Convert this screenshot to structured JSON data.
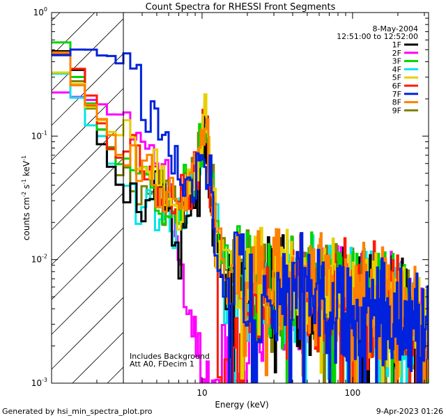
{
  "chart_data": {
    "type": "line",
    "title": "Count Spectra for RHESSI Front Segments",
    "xlabel": "Energy (keV)",
    "ylabel_main": "counts cm",
    "ylabel_exp1": "-2",
    "ylabel_mid": " s",
    "ylabel_exp2": "-1",
    "ylabel_end": " keV",
    "ylabel_exp3": "-1",
    "xscale": "log",
    "yscale": "log",
    "xlim": [
      1,
      320
    ],
    "ylim": [
      0.001,
      1.0
    ],
    "x_ticks": [
      {
        "value": 10,
        "label": "10"
      },
      {
        "value": 100,
        "label": "100"
      }
    ],
    "y_ticks": [
      {
        "value": 0.001,
        "base": "10",
        "exp": "-3"
      },
      {
        "value": 0.01,
        "base": "10",
        "exp": "-2"
      },
      {
        "value": 0.1,
        "base": "10",
        "exp": "-1"
      },
      {
        "value": 1.0,
        "base": "10",
        "exp": "0"
      }
    ],
    "legend_date": "8-May-2004",
    "legend_time": "12:51:00 to 12:52:00",
    "legend_position": "top-right",
    "shaded_region_max_energy": 3.0,
    "annotation_line1": "Includes Background",
    "annotation_line2": "Att A0, FDecim 1",
    "footer_left": "Generated by hsi_min_spectra_plot.pro",
    "footer_right": "9-Apr-2023 01:26",
    "series": [
      {
        "name": "1F",
        "color": "#000000",
        "seed": 11,
        "points": [
          [
            1,
            0.6
          ],
          [
            1.33,
            0.4
          ],
          [
            1.66,
            0.3
          ],
          [
            2.0,
            0.1
          ],
          [
            2.5,
            0.055
          ],
          [
            3.0,
            0.034
          ],
          [
            4.0,
            0.037
          ],
          [
            5.0,
            0.04
          ],
          [
            6.0,
            0.02
          ],
          [
            7.0,
            0.011
          ],
          [
            8.0,
            0.022
          ],
          [
            9.5,
            0.045
          ],
          [
            10.5,
            0.1
          ],
          [
            11.5,
            0.035
          ],
          [
            13,
            0.01
          ],
          [
            16,
            0.0075
          ],
          [
            20,
            0.0055
          ],
          [
            30,
            0.0055
          ],
          [
            50,
            0.0052
          ],
          [
            80,
            0.0045
          ],
          [
            150,
            0.0042
          ],
          [
            250,
            0.003
          ],
          [
            315,
            0.002
          ]
        ]
      },
      {
        "name": "2F",
        "color": "#ff00ff",
        "seed": 12,
        "points": [
          [
            1,
            0.24
          ],
          [
            1.33,
            0.22
          ],
          [
            1.66,
            0.2
          ],
          [
            2.0,
            0.19
          ],
          [
            2.5,
            0.16
          ],
          [
            3.0,
            0.14
          ],
          [
            4.0,
            0.095
          ],
          [
            5.0,
            0.065
          ],
          [
            6.0,
            0.038
          ],
          [
            7.0,
            0.012
          ],
          [
            7.8,
            0.0055
          ],
          [
            9.0,
            0.002
          ],
          [
            10.0,
            0.0012
          ],
          [
            11,
            0.0009
          ],
          [
            14,
            0.0016
          ],
          [
            17,
            0.001
          ],
          [
            22,
            0.0032
          ],
          [
            30,
            0.0045
          ],
          [
            50,
            0.0047
          ],
          [
            80,
            0.0045
          ],
          [
            150,
            0.004
          ],
          [
            250,
            0.003
          ],
          [
            315,
            0.0022
          ]
        ]
      },
      {
        "name": "3F",
        "color": "#00d400",
        "seed": 13,
        "points": [
          [
            1,
            0.65
          ],
          [
            1.33,
            0.45
          ],
          [
            1.66,
            0.22
          ],
          [
            2.0,
            0.14
          ],
          [
            2.5,
            0.075
          ],
          [
            3.0,
            0.055
          ],
          [
            4.0,
            0.05
          ],
          [
            5.0,
            0.035
          ],
          [
            6.0,
            0.025
          ],
          [
            7.0,
            0.025
          ],
          [
            8.0,
            0.035
          ],
          [
            9.5,
            0.06
          ],
          [
            10.5,
            0.13
          ],
          [
            11.5,
            0.045
          ],
          [
            13,
            0.012
          ],
          [
            16,
            0.008
          ],
          [
            20,
            0.0062
          ],
          [
            30,
            0.0058
          ],
          [
            50,
            0.0057
          ],
          [
            80,
            0.0052
          ],
          [
            150,
            0.0045
          ],
          [
            250,
            0.0032
          ],
          [
            315,
            0.002
          ]
        ]
      },
      {
        "name": "4F",
        "color": "#00e5e5",
        "seed": 14,
        "points": [
          [
            1,
            0.36
          ],
          [
            1.33,
            0.3
          ],
          [
            1.66,
            0.13
          ],
          [
            2.0,
            0.13
          ],
          [
            2.5,
            0.06
          ],
          [
            3.0,
            0.036
          ],
          [
            4.0,
            0.03
          ],
          [
            5.0,
            0.02
          ],
          [
            6.0,
            0.017
          ],
          [
            7.0,
            0.022
          ],
          [
            8.0,
            0.032
          ],
          [
            9.5,
            0.055
          ],
          [
            10.5,
            0.11
          ],
          [
            11.5,
            0.04
          ],
          [
            13,
            0.011
          ],
          [
            16,
            0.0075
          ],
          [
            20,
            0.006
          ],
          [
            30,
            0.0055
          ],
          [
            50,
            0.0055
          ],
          [
            80,
            0.005
          ],
          [
            150,
            0.0042
          ],
          [
            250,
            0.003
          ],
          [
            315,
            0.002
          ]
        ]
      },
      {
        "name": "5F",
        "color": "#e5d100",
        "seed": 15,
        "points": [
          [
            1,
            0.38
          ],
          [
            1.33,
            0.3
          ],
          [
            1.66,
            0.22
          ],
          [
            2.0,
            0.16
          ],
          [
            2.5,
            0.11
          ],
          [
            3.0,
            0.09
          ],
          [
            4.0,
            0.065
          ],
          [
            5.0,
            0.05
          ],
          [
            6.0,
            0.03
          ],
          [
            7.0,
            0.032
          ],
          [
            8.0,
            0.04
          ],
          [
            9.5,
            0.06
          ],
          [
            10.5,
            0.16
          ],
          [
            11.5,
            0.05
          ],
          [
            13,
            0.014
          ],
          [
            16,
            0.0085
          ],
          [
            20,
            0.0068
          ],
          [
            30,
            0.0062
          ],
          [
            50,
            0.0058
          ],
          [
            80,
            0.0052
          ],
          [
            150,
            0.0044
          ],
          [
            250,
            0.0032
          ],
          [
            315,
            0.002
          ]
        ]
      },
      {
        "name": "6F",
        "color": "#ff1a00",
        "seed": 16,
        "points": [
          [
            1,
            0.6
          ],
          [
            1.33,
            0.4
          ],
          [
            1.66,
            0.27
          ],
          [
            2.0,
            0.17
          ],
          [
            2.5,
            0.08
          ],
          [
            3.0,
            0.06
          ],
          [
            4.0,
            0.048
          ],
          [
            5.0,
            0.04
          ],
          [
            6.0,
            0.03
          ],
          [
            7.0,
            0.028
          ],
          [
            8.0,
            0.035
          ],
          [
            9.5,
            0.055
          ],
          [
            10.5,
            0.12
          ],
          [
            11.5,
            0.04
          ],
          [
            13,
            0.004
          ],
          [
            15,
            0.0012
          ],
          [
            18,
            0.0025
          ],
          [
            22,
            0.0045
          ],
          [
            30,
            0.005
          ],
          [
            50,
            0.005
          ],
          [
            80,
            0.0046
          ],
          [
            150,
            0.004
          ],
          [
            250,
            0.003
          ],
          [
            315,
            0.002
          ]
        ]
      },
      {
        "name": "7F",
        "color": "#0022dd",
        "seed": 17,
        "points": [
          [
            1,
            0.42
          ],
          [
            1.33,
            0.48
          ],
          [
            1.66,
            0.48
          ],
          [
            2.0,
            0.48
          ],
          [
            2.5,
            0.45
          ],
          [
            3.0,
            0.38
          ],
          [
            3.5,
            0.3
          ],
          [
            4.0,
            0.21
          ],
          [
            5.0,
            0.15
          ],
          [
            6.0,
            0.08
          ],
          [
            7.0,
            0.05
          ],
          [
            8.0,
            0.04
          ],
          [
            9.5,
            0.05
          ],
          [
            10.5,
            0.08
          ],
          [
            11.5,
            0.04
          ],
          [
            13,
            0.012
          ],
          [
            16,
            0.007
          ],
          [
            20,
            0.005
          ],
          [
            30,
            0.005
          ],
          [
            50,
            0.005
          ],
          [
            80,
            0.0046
          ],
          [
            150,
            0.004
          ],
          [
            250,
            0.0028
          ],
          [
            315,
            0.0018
          ]
        ]
      },
      {
        "name": "8F",
        "color": "#ff8000",
        "seed": 18,
        "points": [
          [
            1,
            0.52
          ],
          [
            1.33,
            0.38
          ],
          [
            1.66,
            0.19
          ],
          [
            2.0,
            0.17
          ],
          [
            2.5,
            0.1
          ],
          [
            3.0,
            0.06
          ],
          [
            4.0,
            0.05
          ],
          [
            5.0,
            0.035
          ],
          [
            6.0,
            0.03
          ],
          [
            7.0,
            0.03
          ],
          [
            8.0,
            0.04
          ],
          [
            9.5,
            0.06
          ],
          [
            10.5,
            0.12
          ],
          [
            11.5,
            0.04
          ],
          [
            13,
            0.012
          ],
          [
            16,
            0.0078
          ],
          [
            20,
            0.006
          ],
          [
            30,
            0.0058
          ],
          [
            50,
            0.0055
          ],
          [
            80,
            0.005
          ],
          [
            150,
            0.0043
          ],
          [
            250,
            0.003
          ],
          [
            315,
            0.002
          ]
        ]
      },
      {
        "name": "9F",
        "color": "#7f7f00",
        "seed": 19,
        "points": [
          [
            1,
            0.55
          ],
          [
            1.33,
            0.4
          ],
          [
            1.66,
            0.2
          ],
          [
            2.0,
            0.13
          ],
          [
            2.5,
            0.08
          ],
          [
            3.0,
            0.04
          ],
          [
            4.0,
            0.04
          ],
          [
            5.0,
            0.04
          ],
          [
            6.0,
            0.028
          ],
          [
            7.0,
            0.03
          ],
          [
            8.0,
            0.04
          ],
          [
            9.5,
            0.055
          ],
          [
            10.5,
            0.14
          ],
          [
            11.5,
            0.045
          ],
          [
            13,
            0.012
          ],
          [
            16,
            0.008
          ],
          [
            20,
            0.006
          ],
          [
            30,
            0.0055
          ],
          [
            50,
            0.0052
          ],
          [
            80,
            0.0048
          ],
          [
            150,
            0.0042
          ],
          [
            250,
            0.003
          ],
          [
            315,
            0.002
          ]
        ]
      }
    ]
  }
}
